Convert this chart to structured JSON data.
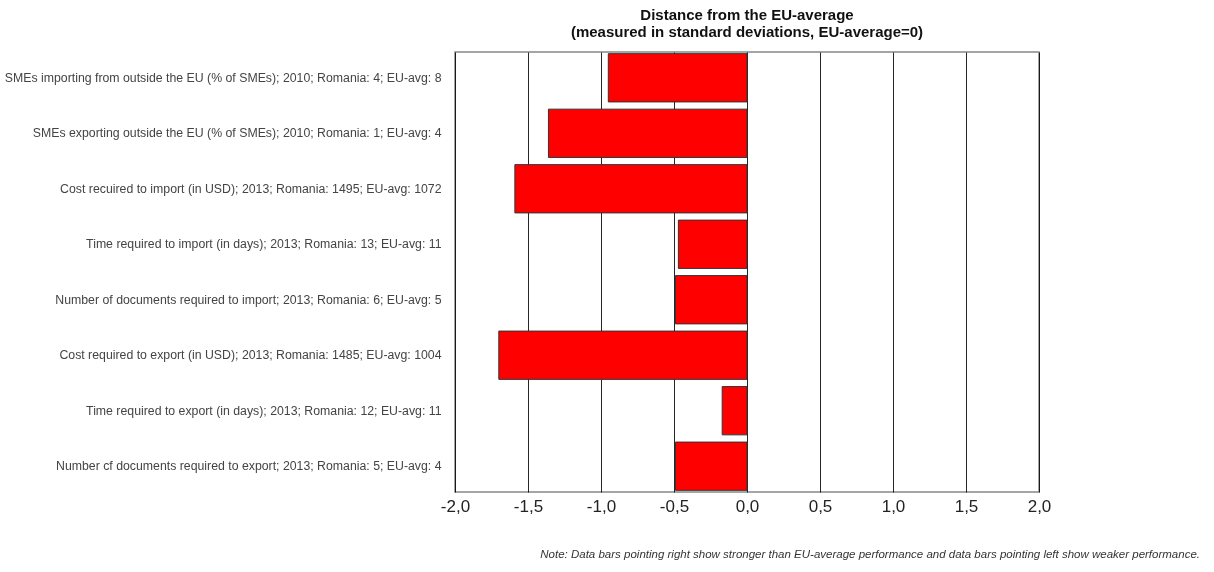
{
  "chart_data": {
    "type": "bar",
    "orientation": "horizontal",
    "title": "Distance from the EU-average",
    "subtitle": "(measured in standard deviations, EU-average=0)",
    "categories": [
      "SMEs importing from outside the EU (% of SMEs); 2010; Romania: 4; EU-avg: 8",
      "SMEs exporting outside the EU (% of SMEs); 2010; Romania: 1; EU-avg: 4",
      "Cost recuired to import (in USD); 2013; Romania: 1495; EU-avg: 1072",
      "Time required to import (in days); 2013; Romania: 13; EU-avg: 11",
      "Number of documents required to import; 2013; Romania: 6; EU-avg: 5",
      "Cost required to export (in USD); 2013; Romania: 1485; EU-avg: 1004",
      "Time required to export (in days); 2013; Romania: 12; EU-avg: 11",
      "Number cf documents required to export; 2013; Romania: 5; EU-avg: 4"
    ],
    "values": [
      -0.95,
      -1.36,
      -1.59,
      -0.47,
      -0.49,
      -1.7,
      -0.17,
      -0.49
    ],
    "color": "#ff0000",
    "xlim": [
      -2,
      2
    ],
    "xticks": [
      {
        "value": -2,
        "label": "-2,0"
      },
      {
        "value": -1.5,
        "label": "-1,5"
      },
      {
        "value": -1,
        "label": "-1,0"
      },
      {
        "value": -0.5,
        "label": "-0,5"
      },
      {
        "value": 0,
        "label": "0,0"
      },
      {
        "value": 0.5,
        "label": "0,5"
      },
      {
        "value": 1,
        "label": "1,0"
      },
      {
        "value": 1.5,
        "label": "1,5"
      },
      {
        "value": 2,
        "label": "2,0"
      }
    ],
    "grid": "x",
    "annotations": [
      "Note: Data bars pointing right show stronger than EU-average performance and data bars pointing left show weaker performance."
    ]
  }
}
